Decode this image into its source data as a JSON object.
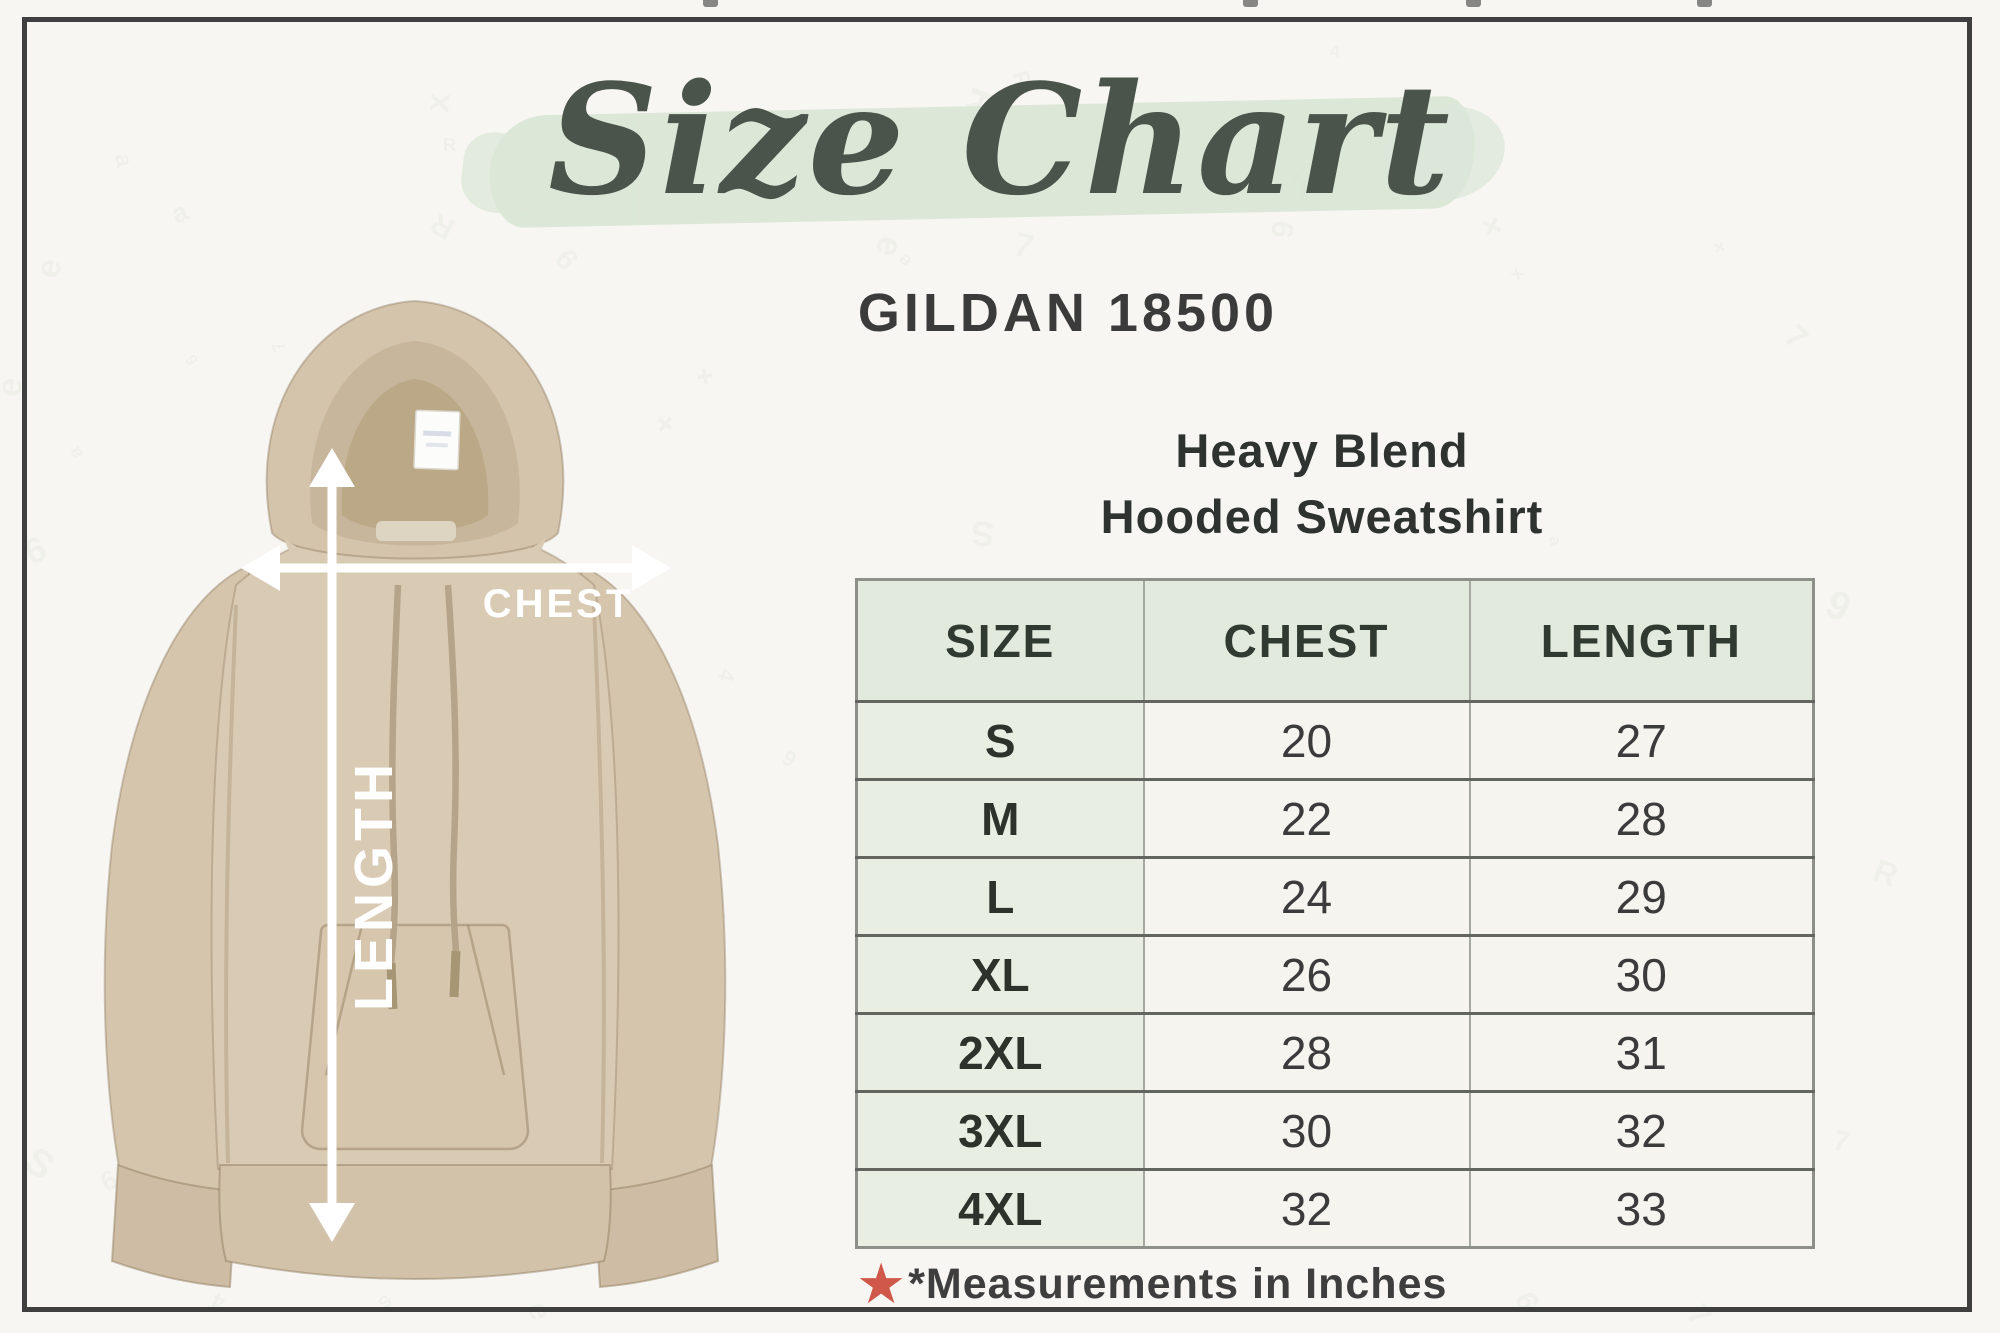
{
  "chart_data": {
    "type": "table",
    "title": "Size Chart",
    "subtitle": "GILDAN 18500",
    "product": "Heavy Blend Hooded Sweatshirt",
    "columns": [
      "SIZE",
      "CHEST",
      "LENGTH"
    ],
    "rows": [
      [
        "S",
        20,
        27
      ],
      [
        "M",
        22,
        28
      ],
      [
        "L",
        24,
        29
      ],
      [
        "XL",
        26,
        30
      ],
      [
        "2XL",
        28,
        31
      ],
      [
        "3XL",
        30,
        32
      ],
      [
        "4XL",
        32,
        33
      ]
    ],
    "units": "inches",
    "note": "*Measurements in Inches",
    "legend_position": "none",
    "grid": true
  },
  "product_heading": {
    "line1": "Heavy Blend",
    "line2": "Hooded Sweatshirt"
  },
  "diagram": {
    "chest_label": "CHEST",
    "length_label": "LENGTH"
  },
  "footnote": {
    "star_icon": "★"
  },
  "colors": {
    "page_bg": "#f7f6f2",
    "frame": "#3f3f3f",
    "title_green": "#4a544b",
    "brush_green": "#d9e6d5",
    "subtitle_text": "#3b3b3b",
    "heading_text": "#2e3330",
    "header_bg": "#e2e9dd",
    "size_col_bg": "#e9eee3",
    "cell_bg": "#f5f4ef",
    "star_red": "#d0584b",
    "hoodie_tan": "#d9cab3"
  },
  "watermark": {
    "glyphs": [
      "x",
      "R",
      "S",
      "K",
      "4",
      "9",
      "e",
      "a",
      "+",
      "7"
    ]
  }
}
